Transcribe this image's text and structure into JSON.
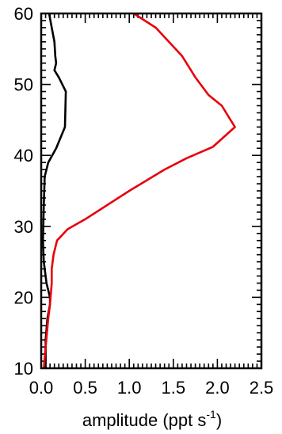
{
  "chart_data": {
    "type": "line",
    "title": "",
    "xlabel_prefix": "amplitude (ppt s",
    "xlabel_sup": "-1",
    "xlabel_suffix": ")",
    "ylabel": "",
    "xlim": [
      0.0,
      2.5
    ],
    "ylim": [
      10,
      60
    ],
    "x_ticks": [
      "0.0",
      "0.5",
      "1.0",
      "1.5",
      "2.0",
      "2.5"
    ],
    "y_ticks": [
      "10",
      "20",
      "30",
      "40",
      "50",
      "60"
    ],
    "grid": false,
    "colors": {
      "black_series": "#000000",
      "red_series": "#e8000b"
    },
    "series": [
      {
        "color": "#000000",
        "points": [
          [
            0.05,
            10
          ],
          [
            0.05,
            14
          ],
          [
            0.07,
            17
          ],
          [
            0.1,
            19
          ],
          [
            0.1,
            20
          ],
          [
            0.06,
            22
          ],
          [
            0.03,
            25
          ],
          [
            0.02,
            28
          ],
          [
            0.03,
            33
          ],
          [
            0.04,
            37
          ],
          [
            0.08,
            39
          ],
          [
            0.17,
            41
          ],
          [
            0.27,
            44
          ],
          [
            0.28,
            49
          ],
          [
            0.2,
            51
          ],
          [
            0.15,
            52
          ],
          [
            0.17,
            53
          ],
          [
            0.16,
            54
          ],
          [
            0.15,
            56
          ],
          [
            0.12,
            58
          ],
          [
            0.09,
            60
          ]
        ]
      },
      {
        "color": "#e8000b",
        "points": [
          [
            0.03,
            10
          ],
          [
            0.05,
            13
          ],
          [
            0.08,
            17
          ],
          [
            0.1,
            19
          ],
          [
            0.12,
            22
          ],
          [
            0.12,
            24
          ],
          [
            0.14,
            26
          ],
          [
            0.18,
            28
          ],
          [
            0.3,
            29.6
          ],
          [
            0.5,
            31
          ],
          [
            1.0,
            35
          ],
          [
            1.4,
            38
          ],
          [
            1.65,
            39.6
          ],
          [
            1.95,
            41.2
          ],
          [
            2.2,
            44
          ],
          [
            2.05,
            47
          ],
          [
            1.9,
            48.5
          ],
          [
            1.75,
            51
          ],
          [
            1.6,
            54
          ],
          [
            1.45,
            56
          ],
          [
            1.3,
            58
          ],
          [
            1.05,
            60
          ]
        ]
      }
    ]
  }
}
